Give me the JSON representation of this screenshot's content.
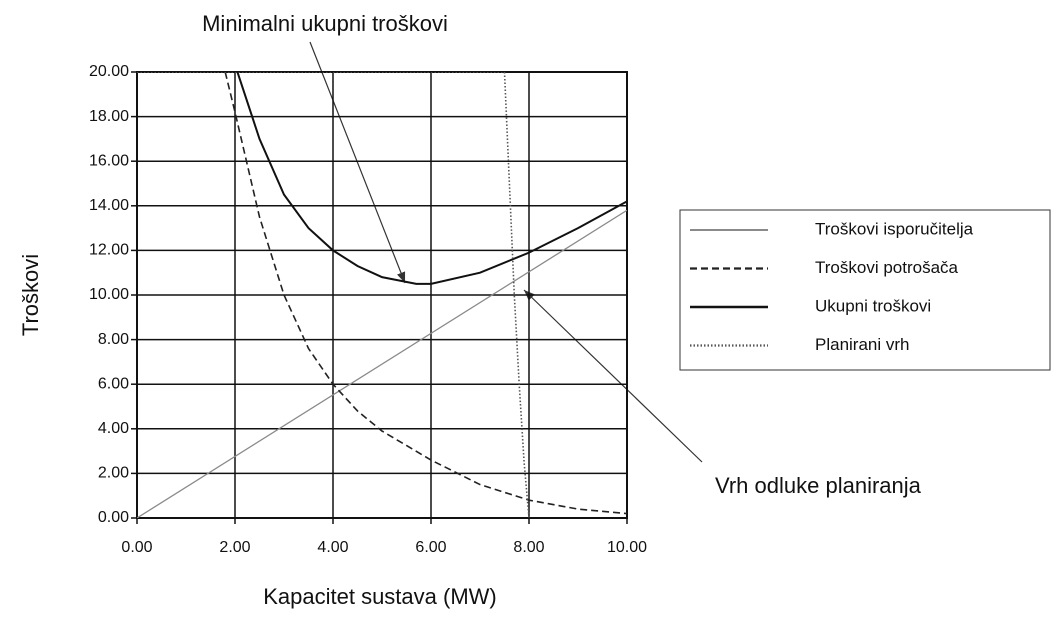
{
  "chart_data": {
    "type": "line",
    "xlabel": "Kapacitet sustava (MW)",
    "ylabel": "Troškovi",
    "annotations": [
      "Minimalni ukupni troškovi",
      "Vrh odluke planiranja"
    ],
    "xlim": [
      0,
      10
    ],
    "ylim": [
      0,
      20
    ],
    "xticks": [
      {
        "value": 0,
        "label": "0.00"
      },
      {
        "value": 2,
        "label": "2.00"
      },
      {
        "value": 4,
        "label": "4.00"
      },
      {
        "value": 6,
        "label": "6.00"
      },
      {
        "value": 8,
        "label": "8.00"
      },
      {
        "value": 10,
        "label": "10.00"
      }
    ],
    "yticks": [
      {
        "value": 0,
        "label": "0.00"
      },
      {
        "value": 2,
        "label": "2.00"
      },
      {
        "value": 4,
        "label": "4.00"
      },
      {
        "value": 6,
        "label": "6.00"
      },
      {
        "value": 8,
        "label": "8.00"
      },
      {
        "value": 10,
        "label": "10.00"
      },
      {
        "value": 12,
        "label": "12.00"
      },
      {
        "value": 14,
        "label": "14.00"
      },
      {
        "value": 16,
        "label": "16.00"
      },
      {
        "value": 18,
        "label": "18.00"
      },
      {
        "value": 20,
        "label": "20.00"
      }
    ],
    "grid": true,
    "legend": "right",
    "series": [
      {
        "name": "Troškovi isporučitelja",
        "color": "#8a8a8a",
        "width": 1.3,
        "dash": "none",
        "x": [
          0,
          10
        ],
        "values": [
          0,
          13.8
        ]
      },
      {
        "name": "Troškovi potrošača",
        "color": "#222222",
        "width": 1.6,
        "dash": "7 4",
        "x": [
          1.8,
          2,
          2.5,
          3,
          3.5,
          4,
          4.5,
          5,
          6,
          7,
          8,
          9,
          10
        ],
        "values": [
          20,
          18.2,
          13.5,
          10,
          7.6,
          6,
          4.8,
          3.9,
          2.6,
          1.5,
          0.8,
          0.4,
          0.2
        ]
      },
      {
        "name": "Ukupni troškovi",
        "color": "#111111",
        "width": 2,
        "dash": "none",
        "x": [
          2.05,
          2.5,
          3,
          3.5,
          4,
          4.5,
          5,
          5.7,
          6,
          7,
          8,
          9,
          10
        ],
        "values": [
          20,
          17,
          14.5,
          13,
          12,
          11.3,
          10.8,
          10.5,
          10.5,
          11,
          11.9,
          13,
          14.2
        ]
      },
      {
        "name": "Planirani vrh",
        "color": "#555555",
        "width": 1.6,
        "dash": "1.5 2",
        "x": [
          0,
          7.5,
          7.6,
          7.7,
          7.8,
          7.9,
          8
        ],
        "values": [
          20,
          20,
          15,
          10,
          6,
          2.5,
          0
        ]
      }
    ]
  }
}
